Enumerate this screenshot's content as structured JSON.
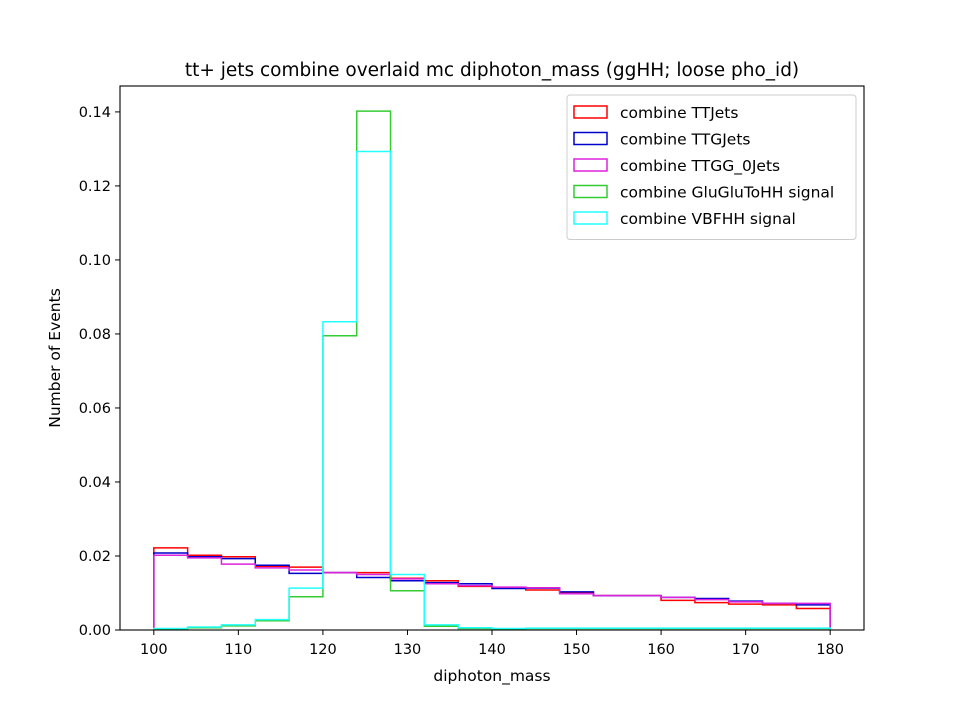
{
  "chart_data": {
    "type": "step-histogram",
    "title": "tt+ jets combine overlaid mc diphoton_mass (ggHH; loose pho_id)",
    "xlabel": "diphoton_mass",
    "ylabel": "Number of Events",
    "xlim": [
      96,
      184
    ],
    "ylim": [
      0,
      0.147
    ],
    "xticks": [
      100,
      110,
      120,
      130,
      140,
      150,
      160,
      170,
      180
    ],
    "yticks": [
      0.0,
      0.02,
      0.04,
      0.06,
      0.08,
      0.1,
      0.12,
      0.14
    ],
    "ytick_labels": [
      "0.00",
      "0.02",
      "0.04",
      "0.06",
      "0.08",
      "0.10",
      "0.12",
      "0.14"
    ],
    "legend_position": "top-right",
    "bin_edges": [
      100,
      104,
      108,
      112,
      116,
      120,
      124,
      128,
      132,
      136,
      140,
      144,
      148,
      152,
      156,
      160,
      164,
      168,
      172,
      176,
      180
    ],
    "series": [
      {
        "name": "combine TTJets",
        "color": "#ff0000",
        "values": [
          0.0222,
          0.0202,
          0.0198,
          0.0172,
          0.017,
          0.0155,
          0.0155,
          0.014,
          0.0133,
          0.0118,
          0.0115,
          0.0108,
          0.01,
          0.0093,
          0.0093,
          0.008,
          0.0074,
          0.007,
          0.0068,
          0.0058
        ]
      },
      {
        "name": "combine TTGJets",
        "color": "#0000cc",
        "values": [
          0.0208,
          0.0198,
          0.0193,
          0.0175,
          0.0153,
          0.0155,
          0.0142,
          0.0133,
          0.0128,
          0.0125,
          0.0112,
          0.0113,
          0.0103,
          0.0093,
          0.0093,
          0.0088,
          0.0085,
          0.0078,
          0.0072,
          0.0068
        ]
      },
      {
        "name": "combine TTGG_0Jets",
        "color": "#dd22dd",
        "values": [
          0.0202,
          0.0195,
          0.0178,
          0.0168,
          0.0162,
          0.0155,
          0.015,
          0.0138,
          0.0125,
          0.012,
          0.0116,
          0.0114,
          0.0098,
          0.0093,
          0.0093,
          0.0088,
          0.0082,
          0.0076,
          0.0072,
          0.0072
        ]
      },
      {
        "name": "combine GluGluToHH signal",
        "color": "#33cc33",
        "values": [
          0.0003,
          0.0006,
          0.0011,
          0.0025,
          0.009,
          0.0795,
          0.1402,
          0.0106,
          0.001,
          0.0004,
          0.0003,
          0.0004,
          0.0004,
          0.0004,
          0.0004,
          0.0004,
          0.0004,
          0.0004,
          0.0004,
          0.0004
        ]
      },
      {
        "name": "combine VBFHH signal",
        "color": "#22ffff",
        "values": [
          0.0004,
          0.0008,
          0.0014,
          0.0028,
          0.0113,
          0.0833,
          0.1293,
          0.015,
          0.0014,
          0.0006,
          0.0004,
          0.0005,
          0.0005,
          0.0005,
          0.0005,
          0.0005,
          0.0005,
          0.0005,
          0.0005,
          0.0005
        ]
      }
    ]
  }
}
